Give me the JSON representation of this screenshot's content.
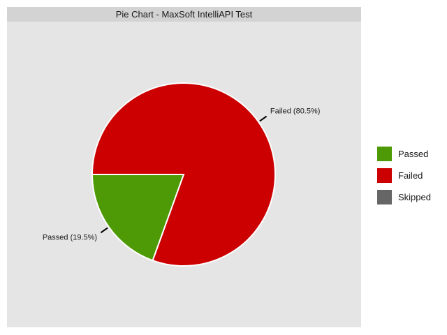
{
  "chart_data": {
    "type": "pie",
    "title": "Pie Chart - MaxSoft IntelliAPI Test",
    "slices": [
      {
        "name": "Passed",
        "value": 19.5,
        "label": "Passed (19.5%)",
        "color": "#4e9a06"
      },
      {
        "name": "Failed",
        "value": 80.5,
        "label": "Failed (80.5%)",
        "color": "#cc0000"
      }
    ],
    "legend": {
      "position": "right",
      "entries": [
        {
          "name": "Passed",
          "color": "#4e9a06"
        },
        {
          "name": "Failed",
          "color": "#cc0000"
        },
        {
          "name": "Skipped",
          "color": "#666666"
        }
      ]
    },
    "panel_background": "#e5e5e5",
    "strip_background": "#d3d3d3"
  }
}
